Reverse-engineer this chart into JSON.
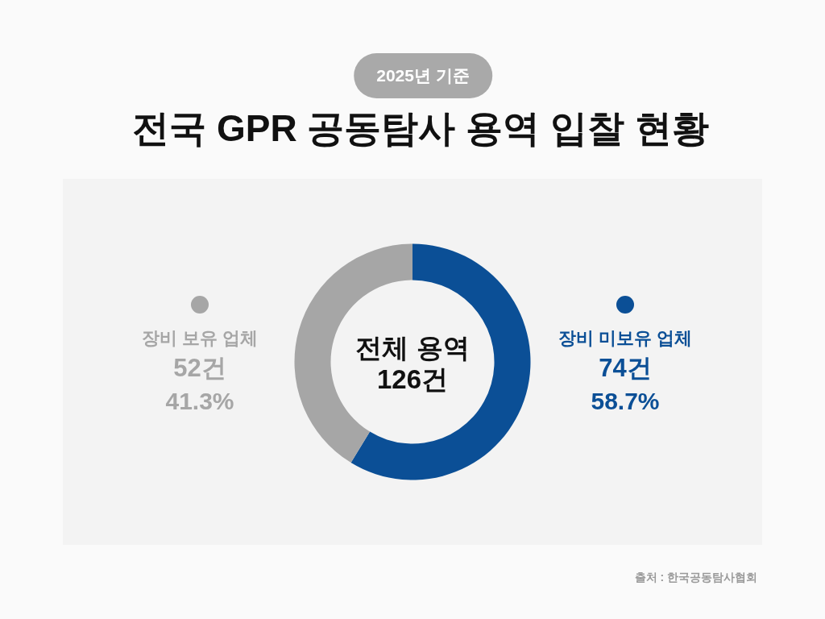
{
  "chart_data": {
    "type": "donut",
    "title": "전국 GPR 공동탐사 용역 입찰 현황",
    "subtitle": "2025년 기준",
    "categories": [
      "장비 미보유 업체",
      "장비 보유 업체"
    ],
    "values": [
      74,
      52
    ],
    "colors": [
      "#0b4f96",
      "#a6a6a6"
    ],
    "value_labels": [
      "74건",
      "52건"
    ],
    "legend": "center",
    "annotations": [
      {
        "text": "58.7%",
        "x": "장비 미보유 업체"
      },
      {
        "text": "41.3%",
        "x": "장비 보유 업체"
      },
      {
        "text": "전체 용역 126건"
      },
      "출처 : 한국공동탐사협회"
    ]
  }
}
